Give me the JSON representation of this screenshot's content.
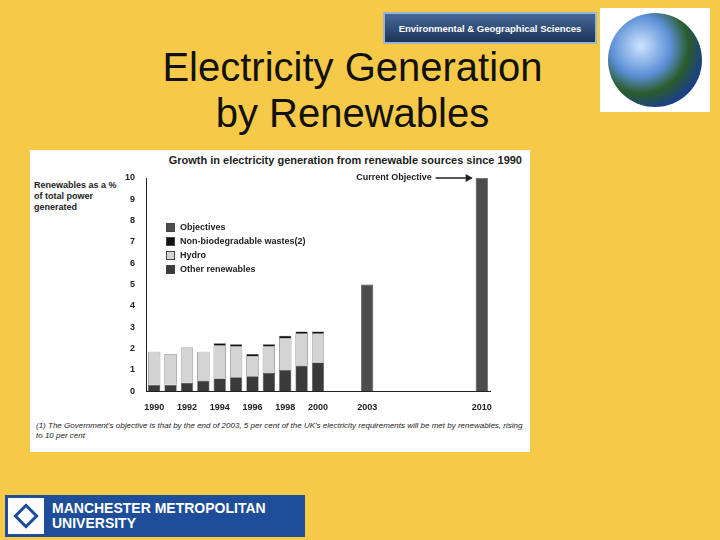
{
  "slide": {
    "title": "Electricity Generation by Renewables",
    "header_logo": "Environmental & Geographical Sciences",
    "footer_logo": "MANCHESTER METROPOLITAN UNIVERSITY"
  },
  "chart_data": {
    "type": "bar",
    "stacked": true,
    "title": "Growth in electricity generation from renewable sources since 1990",
    "y_label": "Renewables as a % of total power generated",
    "annotations": [
      "Current Objective"
    ],
    "note": "(1) The Government's objective is that by the end of 2003, 5 per cent of the UK's electricity requirements will be met by renewables, rising to 10 per cent",
    "categories": [
      "1990",
      null,
      "1992",
      null,
      "1994",
      null,
      "1996",
      null,
      "1998",
      null,
      "2000",
      null,
      null,
      "2003",
      null,
      null,
      null,
      null,
      null,
      null,
      "2010"
    ],
    "series": [
      {
        "name": "Objectives",
        "color": "#4d4d4d",
        "values": [
          null,
          null,
          null,
          null,
          null,
          null,
          null,
          null,
          null,
          null,
          null,
          null,
          null,
          5,
          null,
          null,
          null,
          null,
          null,
          null,
          10
        ]
      },
      {
        "name": "Non-biodegradable wastes(2)",
        "color": "#111111",
        "values": [
          0,
          0,
          0,
          0,
          0.1,
          0.1,
          0.1,
          0.1,
          0.1,
          0.1,
          0.1,
          null,
          null,
          null,
          null,
          null,
          null,
          null,
          null,
          null,
          null
        ]
      },
      {
        "name": "Hydro",
        "color": "#d4d4d4",
        "values": [
          1.55,
          1.45,
          1.65,
          1.35,
          1.55,
          1.45,
          0.95,
          1.25,
          1.5,
          1.5,
          1.35,
          null,
          null,
          null,
          null,
          null,
          null,
          null,
          null,
          null,
          null
        ]
      },
      {
        "name": "Other renewables",
        "color": "#3a3a3a",
        "values": [
          0.3,
          0.3,
          0.4,
          0.5,
          0.6,
          0.65,
          0.7,
          0.85,
          1.0,
          1.2,
          1.35,
          null,
          null,
          null,
          null,
          null,
          null,
          null,
          null,
          null,
          null
        ]
      }
    ],
    "ylim": [
      0,
      10
    ],
    "yticks": [
      0,
      1,
      2,
      3,
      4,
      5,
      6,
      7,
      8,
      9,
      10
    ],
    "grid": false,
    "legend": "upper left"
  }
}
